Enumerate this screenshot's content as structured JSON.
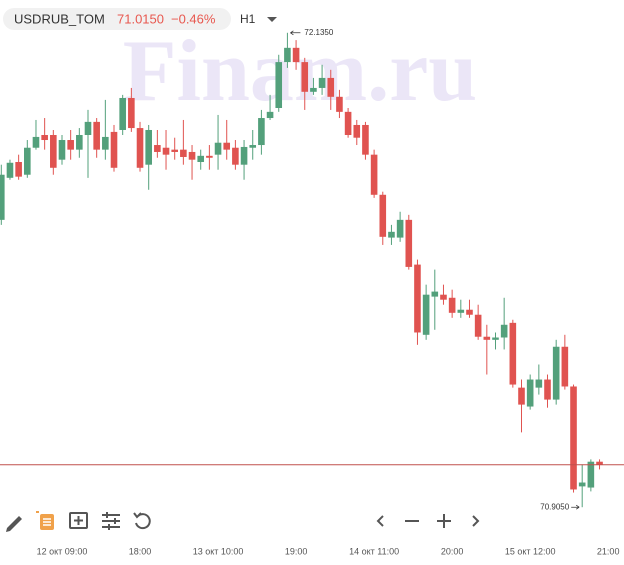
{
  "chart_data": {
    "type": "candlestick",
    "symbol": "USDRUB_TOM",
    "last_price": {
      "value": 71.015,
      "label": "71.0150"
    },
    "change": {
      "value": -0.46,
      "label": "−0.46%"
    },
    "timeframe": "H1",
    "watermark": "Finam.ru",
    "up_color": "#53a07b",
    "down_color": "#e05350",
    "price_line_color": "#c0504d",
    "ylim": [
      70.82,
      72.22
    ],
    "max_label": {
      "value": 72.135,
      "label": "72.1350"
    },
    "min_label": {
      "value": 70.905,
      "label": "70.9050"
    },
    "categories": [
      null,
      null,
      null,
      null,
      null,
      null,
      null,
      "12 окт 09:00",
      null,
      null,
      null,
      null,
      null,
      null,
      null,
      null,
      "18:00",
      null,
      null,
      null,
      null,
      null,
      null,
      null,
      null,
      "13 окт 10:00",
      null,
      null,
      null,
      null,
      null,
      null,
      null,
      null,
      "19:00",
      null,
      null,
      null,
      null,
      null,
      null,
      null,
      null,
      "14 окт 11:00",
      null,
      null,
      null,
      null,
      null,
      null,
      null,
      null,
      "20:00",
      null,
      null,
      null,
      null,
      null,
      null,
      null,
      null,
      "15 окт 12:00",
      null,
      null,
      null,
      null,
      null,
      null,
      null,
      null,
      "21:00"
    ],
    "open": [
      71.65,
      71.759,
      71.8,
      71.767,
      71.837,
      71.87,
      71.87,
      71.806,
      71.857,
      71.832,
      71.87,
      71.904,
      71.832,
      71.878,
      71.883,
      71.966,
      71.888,
      71.793,
      71.844,
      71.837,
      71.832,
      71.832,
      71.826,
      71.8,
      71.816,
      71.819,
      71.85,
      71.837,
      71.793,
      71.837,
      71.844,
      71.914,
      71.94,
      72.059,
      72.096,
      72.059,
      71.982,
      71.992,
      72.018,
      71.969,
      71.93,
      71.896,
      71.896,
      71.819,
      71.715,
      71.604,
      71.604,
      71.65,
      71.534,
      71.352,
      71.451,
      71.456,
      71.448,
      71.409,
      71.417,
      71.404,
      71.347,
      71.339,
      71.345,
      71.383,
      71.215,
      71.166,
      71.215,
      71.236,
      71.184,
      71.321,
      71.218,
      70.959,
      70.956,
      71.023,
      null
    ],
    "high": [
      71.793,
      71.806,
      71.819,
      71.857,
      71.909,
      71.914,
      71.883,
      71.87,
      71.883,
      71.888,
      71.935,
      71.914,
      71.961,
      71.896,
      71.974,
      71.992,
      71.904,
      71.896,
      71.883,
      71.883,
      71.863,
      71.909,
      71.844,
      71.832,
      71.844,
      71.922,
      71.909,
      71.857,
      71.857,
      71.883,
      71.935,
      71.974,
      72.078,
      72.135,
      72.116,
      72.07,
      72.018,
      72.052,
      72.039,
      71.987,
      71.94,
      71.909,
      71.904,
      71.832,
      71.723,
      71.637,
      71.671,
      71.663,
      71.547,
      71.482,
      71.521,
      71.482,
      71.469,
      71.443,
      71.443,
      71.43,
      71.378,
      71.358,
      71.448,
      71.391,
      71.236,
      71.249,
      71.275,
      71.249,
      71.339,
      71.352,
      71.223,
      71.016,
      71.029,
      71.029,
      null
    ],
    "low": [
      71.637,
      71.754,
      71.754,
      71.759,
      71.832,
      71.832,
      71.767,
      71.793,
      71.806,
      71.811,
      71.759,
      71.811,
      71.806,
      71.775,
      71.87,
      71.878,
      71.775,
      71.728,
      71.811,
      71.78,
      71.806,
      71.793,
      71.754,
      71.78,
      71.78,
      71.78,
      71.806,
      71.78,
      71.754,
      71.806,
      71.819,
      71.909,
      71.93,
      72.044,
      72.039,
      71.935,
      71.974,
      71.974,
      71.935,
      71.914,
      71.863,
      71.844,
      71.806,
      71.707,
      71.585,
      71.585,
      71.593,
      71.521,
      71.326,
      71.339,
      71.365,
      71.43,
      71.396,
      71.396,
      71.396,
      71.339,
      71.249,
      71.314,
      71.314,
      71.215,
      71.099,
      71.158,
      71.197,
      71.163,
      71.171,
      71.21,
      70.943,
      70.905,
      70.946,
      71.003,
      null
    ],
    "close": [
      71.767,
      71.798,
      71.762,
      71.837,
      71.865,
      71.857,
      71.785,
      71.857,
      71.832,
      71.87,
      71.904,
      71.832,
      71.865,
      71.785,
      71.966,
      71.888,
      71.785,
      71.883,
      71.826,
      71.819,
      71.826,
      71.813,
      71.806,
      71.816,
      71.811,
      71.85,
      71.832,
      71.793,
      71.839,
      71.844,
      71.914,
      71.93,
      72.059,
      72.096,
      72.059,
      71.982,
      71.992,
      72.018,
      71.969,
      71.93,
      71.87,
      71.863,
      71.819,
      71.715,
      71.606,
      71.619,
      71.65,
      71.528,
      71.358,
      71.456,
      71.464,
      71.443,
      71.409,
      71.417,
      71.404,
      71.347,
      71.339,
      71.345,
      71.378,
      71.223,
      71.171,
      71.236,
      71.236,
      71.184,
      71.321,
      71.218,
      70.951,
      70.969,
      71.023,
      71.015,
      null
    ]
  }
}
